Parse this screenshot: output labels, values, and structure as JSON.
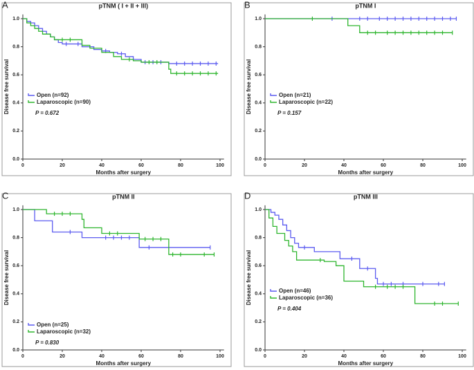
{
  "chart_data": [
    {
      "type": "step",
      "panel": "A",
      "title": "pTNM ( I + II + III)",
      "xlabel": "Months after surgery",
      "ylabel": "Disease free survival",
      "xlim": [
        0,
        102
      ],
      "ylim": [
        0,
        1.03
      ],
      "xticks": [
        0,
        20,
        40,
        60,
        80,
        100
      ],
      "yticks": [
        {
          "value": 0,
          "label": "0.0"
        },
        {
          "value": 0.2,
          "label": "0.2"
        },
        {
          "value": 0.4,
          "label": "0.4"
        },
        {
          "value": 0.6,
          "label": "0.6"
        },
        {
          "value": 0.8,
          "label": "0.8"
        },
        {
          "value": 1,
          "label": "1.0"
        }
      ],
      "annotation": "P = 0.672",
      "series": [
        {
          "name": "Open (n=92)",
          "color": "#5a5af0",
          "x": [
            0,
            2,
            4,
            6,
            8,
            10,
            12,
            14,
            16,
            18,
            20,
            30,
            36,
            40,
            44,
            48,
            52,
            56,
            60,
            74,
            99
          ],
          "values": [
            1,
            0.98,
            0.97,
            0.95,
            0.93,
            0.91,
            0.89,
            0.87,
            0.85,
            0.83,
            0.82,
            0.8,
            0.78,
            0.77,
            0.76,
            0.75,
            0.73,
            0.71,
            0.69,
            0.68,
            0.68
          ],
          "censored_x": [
            22,
            28,
            42,
            50,
            62,
            66,
            70,
            78,
            82,
            86,
            90,
            94,
            98
          ],
          "censored_values": [
            0.82,
            0.82,
            0.77,
            0.75,
            0.69,
            0.69,
            0.69,
            0.68,
            0.68,
            0.68,
            0.68,
            0.68,
            0.68
          ]
        },
        {
          "name": "Laparoscopic (n=90)",
          "color": "#2db52d",
          "x": [
            0,
            2,
            4,
            6,
            8,
            10,
            14,
            16,
            30,
            34,
            40,
            46,
            50,
            56,
            60,
            74,
            75,
            99
          ],
          "values": [
            1,
            0.97,
            0.95,
            0.93,
            0.91,
            0.89,
            0.87,
            0.85,
            0.81,
            0.79,
            0.76,
            0.73,
            0.71,
            0.7,
            0.69,
            0.64,
            0.61,
            0.61
          ],
          "censored_x": [
            20,
            24,
            54,
            64,
            68,
            78,
            82,
            86,
            90,
            94,
            98
          ],
          "censored_values": [
            0.85,
            0.85,
            0.71,
            0.69,
            0.69,
            0.61,
            0.61,
            0.61,
            0.61,
            0.61,
            0.61
          ]
        }
      ]
    },
    {
      "type": "step",
      "panel": "B",
      "title": "pTNM I",
      "xlabel": "Months after surgery",
      "ylabel": "Disease free survival",
      "xlim": [
        0,
        102
      ],
      "ylim": [
        0,
        1.03
      ],
      "xticks": [
        0,
        20,
        40,
        60,
        80,
        100
      ],
      "yticks": [
        {
          "value": 0,
          "label": "0.0"
        },
        {
          "value": 0.2,
          "label": "0.2"
        },
        {
          "value": 0.4,
          "label": "0.4"
        },
        {
          "value": 0.6,
          "label": "0.6"
        },
        {
          "value": 0.8,
          "label": "0.8"
        },
        {
          "value": 1,
          "label": "1.0"
        }
      ],
      "annotation": "P = 0.157",
      "series": [
        {
          "name": "Open (n=21)",
          "color": "#5a5af0",
          "x": [
            0,
            97
          ],
          "values": [
            1,
            1
          ],
          "censored_x": [
            34,
            48,
            52,
            58,
            62,
            66,
            70,
            74,
            78,
            82,
            86,
            90,
            94,
            97
          ],
          "censored_values": [
            1,
            1,
            1,
            1,
            1,
            1,
            1,
            1,
            1,
            1,
            1,
            1,
            1,
            1
          ]
        },
        {
          "name": "Laparoscopic (n=22)",
          "color": "#2db52d",
          "x": [
            0,
            42,
            48,
            95
          ],
          "values": [
            1,
            0.95,
            0.9,
            0.9
          ],
          "censored_x": [
            24,
            52,
            56,
            62,
            66,
            70,
            74,
            78,
            82,
            86,
            90,
            95
          ],
          "censored_values": [
            1,
            0.9,
            0.9,
            0.9,
            0.9,
            0.9,
            0.9,
            0.9,
            0.9,
            0.9,
            0.9,
            0.9
          ]
        }
      ]
    },
    {
      "type": "step",
      "panel": "C",
      "title": "pTNM II",
      "xlabel": "Months after surgery",
      "ylabel": "Disease free survival",
      "xlim": [
        0,
        102
      ],
      "ylim": [
        0,
        1.03
      ],
      "xticks": [
        0,
        20,
        40,
        60,
        80,
        100
      ],
      "yticks": [
        {
          "value": 0,
          "label": "0.0"
        },
        {
          "value": 0.2,
          "label": "0.2"
        },
        {
          "value": 0.4,
          "label": "0.4"
        },
        {
          "value": 0.6,
          "label": "0.6"
        },
        {
          "value": 0.8,
          "label": "0.8"
        },
        {
          "value": 1,
          "label": "1.0"
        }
      ],
      "annotation": "P = 0.830",
      "series": [
        {
          "name": "Open (n=25)",
          "color": "#5a5af0",
          "x": [
            0,
            6,
            15,
            30,
            59,
            95
          ],
          "values": [
            1,
            0.92,
            0.84,
            0.8,
            0.73,
            0.73
          ],
          "censored_x": [
            24,
            42,
            46,
            50,
            54,
            64,
            95
          ],
          "censored_values": [
            0.84,
            0.8,
            0.8,
            0.8,
            0.8,
            0.73,
            0.73
          ]
        },
        {
          "name": "Laparoscopic (n=32)",
          "color": "#2db52d",
          "x": [
            0,
            12,
            30,
            31,
            40,
            59,
            74,
            97
          ],
          "values": [
            1,
            0.97,
            0.93,
            0.87,
            0.83,
            0.79,
            0.68,
            0.68
          ],
          "censored_x": [
            16,
            20,
            24,
            44,
            48,
            62,
            66,
            70,
            76,
            80,
            92,
            97
          ],
          "censored_values": [
            0.97,
            0.97,
            0.97,
            0.83,
            0.83,
            0.79,
            0.79,
            0.79,
            0.68,
            0.68,
            0.68,
            0.68
          ]
        }
      ]
    },
    {
      "type": "step",
      "panel": "D",
      "title": "pTNM III",
      "xlabel": "Months after surgery",
      "ylabel": "Disease free survival",
      "xlim": [
        0,
        102
      ],
      "ylim": [
        0,
        1.03
      ],
      "xticks": [
        0,
        20,
        40,
        60,
        80,
        100
      ],
      "yticks": [
        {
          "value": 0,
          "label": "0.0"
        },
        {
          "value": 0.2,
          "label": "0.2"
        },
        {
          "value": 0.4,
          "label": "0.4"
        },
        {
          "value": 0.6,
          "label": "0.6"
        },
        {
          "value": 0.8,
          "label": "0.8"
        },
        {
          "value": 1,
          "label": "1.0"
        }
      ],
      "annotation": "P = 0.404",
      "series": [
        {
          "name": "Open (n=46)",
          "color": "#5a5af0",
          "x": [
            0,
            3,
            5,
            7,
            9,
            11,
            13,
            15,
            17,
            25,
            38,
            48,
            56,
            57,
            91
          ],
          "values": [
            1,
            0.98,
            0.96,
            0.93,
            0.89,
            0.85,
            0.8,
            0.76,
            0.73,
            0.7,
            0.65,
            0.58,
            0.51,
            0.47,
            0.47
          ],
          "censored_x": [
            20,
            44,
            52,
            60,
            64,
            70,
            80,
            88,
            91
          ],
          "censored_values": [
            0.73,
            0.65,
            0.58,
            0.47,
            0.47,
            0.47,
            0.47,
            0.47,
            0.47
          ]
        },
        {
          "name": "Laparoscopic (n=36)",
          "color": "#2db52d",
          "x": [
            0,
            2,
            4,
            6,
            10,
            12,
            14,
            16,
            30,
            36,
            40,
            50,
            76,
            98
          ],
          "values": [
            1,
            0.94,
            0.88,
            0.83,
            0.78,
            0.74,
            0.7,
            0.64,
            0.63,
            0.6,
            0.49,
            0.45,
            0.33,
            0.33
          ],
          "censored_x": [
            28,
            56,
            62,
            66,
            70,
            86,
            90,
            98
          ],
          "censored_values": [
            0.64,
            0.45,
            0.45,
            0.45,
            0.45,
            0.33,
            0.33,
            0.33
          ]
        }
      ]
    }
  ]
}
